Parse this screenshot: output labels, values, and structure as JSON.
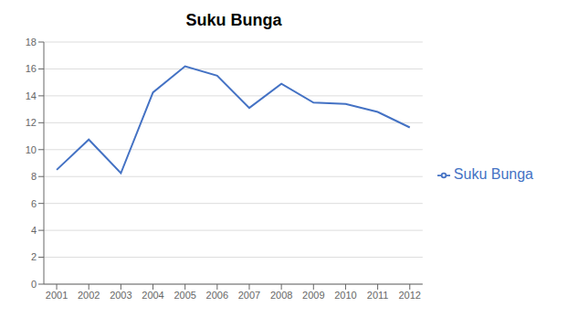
{
  "chart_data": {
    "type": "line",
    "title": "Suku Bunga",
    "x": [
      2001,
      2002,
      2003,
      2004,
      2005,
      2006,
      2007,
      2008,
      2009,
      2010,
      2011,
      2012
    ],
    "series": [
      {
        "name": "Suku Bunga",
        "color": "#4472C4",
        "values": [
          8.5,
          10.75,
          8.25,
          14.25,
          16.2,
          15.5,
          13.1,
          14.9,
          13.5,
          13.4,
          12.8,
          11.65
        ]
      }
    ],
    "xlim": [
      2000.6,
      2012.4
    ],
    "xticks": [
      2001,
      2002,
      2003,
      2004,
      2005,
      2006,
      2007,
      2008,
      2009,
      2010,
      2011,
      2012
    ],
    "ylim": [
      0,
      18
    ],
    "yticks": [
      0,
      2,
      4,
      6,
      8,
      10,
      12,
      14,
      16,
      18
    ],
    "grid": true,
    "legend": "right"
  }
}
